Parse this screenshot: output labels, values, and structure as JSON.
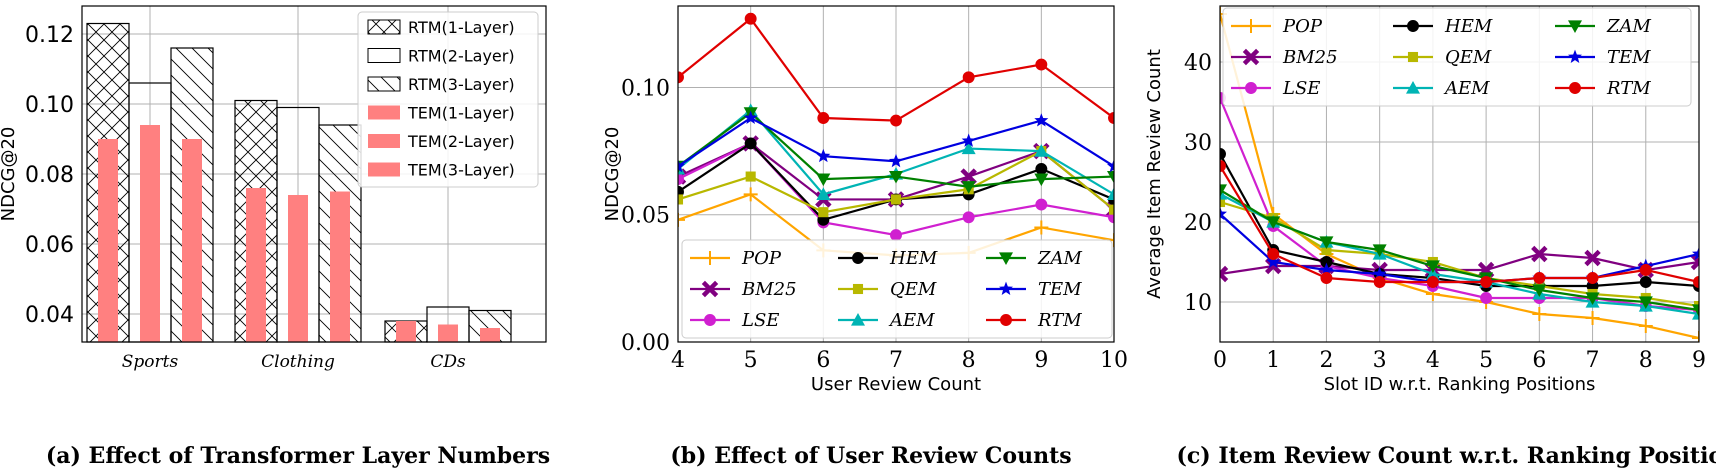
{
  "chart_data": [
    {
      "type": "bar",
      "title": "",
      "caption": "(a) Effect of Transformer Layer Numbers",
      "ylabel": "NDCG@20",
      "xlabel": "",
      "ylim": [
        0.032,
        0.128
      ],
      "yticks": [
        0.04,
        0.06,
        0.08,
        0.1,
        0.12
      ],
      "ytick_labels": [
        "0.04",
        "0.06",
        "0.08",
        "0.10",
        "0.12"
      ],
      "categories": [
        "Sports",
        "Clothing",
        "CDs"
      ],
      "series": [
        {
          "name": "RTM(1-Layer)",
          "kind": "outline",
          "hatch": "cross",
          "values": [
            0.123,
            0.101,
            0.038
          ]
        },
        {
          "name": "RTM(2-Layer)",
          "kind": "outline",
          "hatch": "none",
          "values": [
            0.106,
            0.099,
            0.042
          ]
        },
        {
          "name": "RTM(3-Layer)",
          "kind": "outline",
          "hatch": "back",
          "values": [
            0.116,
            0.094,
            0.041
          ]
        },
        {
          "name": "TEM(1-Layer)",
          "kind": "filled",
          "values": [
            0.09,
            0.076,
            0.038
          ]
        },
        {
          "name": "TEM(2-Layer)",
          "kind": "filled",
          "values": [
            0.094,
            0.074,
            0.037
          ]
        },
        {
          "name": "TEM(3-Layer)",
          "kind": "filled",
          "values": [
            0.09,
            0.075,
            0.036
          ]
        }
      ],
      "grid": true,
      "legend": "top-right",
      "colors": {
        "filled": "#ff8080",
        "outline": "#000000"
      }
    },
    {
      "type": "line",
      "title": "",
      "caption": "(b) Effect of User Review Counts",
      "xlabel": "User Review Count",
      "ylabel": "NDCG@20",
      "x": [
        4,
        5,
        6,
        7,
        8,
        9,
        10
      ],
      "xlim": [
        4,
        10
      ],
      "ylim": [
        0.0,
        0.132
      ],
      "yticks": [
        0.0,
        0.05,
        0.1
      ],
      "ytick_labels": [
        "0.00",
        "0.05",
        "0.10"
      ],
      "xtick_labels": [
        "4",
        "5",
        "6",
        "7",
        "8",
        "9",
        "10"
      ],
      "series": [
        {
          "name": "POP",
          "color": "#ffa500",
          "marker": "plus",
          "values": [
            0.048,
            0.058,
            0.036,
            0.034,
            0.035,
            0.045,
            0.04
          ]
        },
        {
          "name": "BM25",
          "color": "#800080",
          "marker": "x",
          "values": [
            0.065,
            0.078,
            0.056,
            0.056,
            0.065,
            0.075,
            0.052
          ]
        },
        {
          "name": "LSE",
          "color": "#d020d0",
          "marker": "circle",
          "values": [
            0.064,
            0.078,
            0.047,
            0.042,
            0.049,
            0.054,
            0.049
          ]
        },
        {
          "name": "HEM",
          "color": "#000000",
          "marker": "circle",
          "values": [
            0.059,
            0.078,
            0.048,
            0.056,
            0.058,
            0.068,
            0.056
          ]
        },
        {
          "name": "QEM",
          "color": "#b8b800",
          "marker": "square",
          "values": [
            0.056,
            0.065,
            0.051,
            0.056,
            0.06,
            0.075,
            0.052
          ]
        },
        {
          "name": "AEM",
          "color": "#00b4b4",
          "marker": "triangle-up",
          "values": [
            0.068,
            0.091,
            0.058,
            0.066,
            0.076,
            0.075,
            0.058
          ]
        },
        {
          "name": "ZAM",
          "color": "#008000",
          "marker": "triangle-down",
          "values": [
            0.069,
            0.09,
            0.064,
            0.065,
            0.061,
            0.064,
            0.065
          ]
        },
        {
          "name": "TEM",
          "color": "#0000e0",
          "marker": "star",
          "values": [
            0.069,
            0.088,
            0.073,
            0.071,
            0.079,
            0.087,
            0.069
          ]
        },
        {
          "name": "RTM",
          "color": "#e00000",
          "marker": "circle",
          "values": [
            0.104,
            0.127,
            0.088,
            0.087,
            0.104,
            0.109,
            0.088
          ]
        }
      ],
      "grid": true,
      "legend": "bottom"
    },
    {
      "type": "line",
      "title": "",
      "caption": "(c) Item Review Count w.r.t. Ranking Positions",
      "xlabel": "Slot ID w.r.t. Ranking Positions",
      "ylabel": "Average Item Review Count",
      "x": [
        0,
        1,
        2,
        3,
        4,
        5,
        6,
        7,
        8,
        9
      ],
      "xlim": [
        0,
        9
      ],
      "ylim": [
        5,
        47
      ],
      "yticks": [
        10,
        20,
        30,
        40
      ],
      "ytick_labels": [
        "10",
        "20",
        "30",
        "40"
      ],
      "xtick_labels": [
        "0",
        "1",
        "2",
        "3",
        "4",
        "5",
        "6",
        "7",
        "8",
        "9"
      ],
      "series": [
        {
          "name": "POP",
          "color": "#ffa500",
          "marker": "plus",
          "values": [
            46.0,
            21.0,
            16.0,
            13.0,
            11.0,
            10.0,
            8.5,
            8.0,
            7.0,
            5.5
          ]
        },
        {
          "name": "BM25",
          "color": "#800080",
          "marker": "x",
          "values": [
            13.5,
            14.5,
            14.5,
            14.0,
            14.0,
            14.0,
            16.0,
            15.5,
            14.0,
            15.0
          ]
        },
        {
          "name": "LSE",
          "color": "#d020d0",
          "marker": "circle",
          "values": [
            35.5,
            19.5,
            14.5,
            13.0,
            12.0,
            10.5,
            10.5,
            10.5,
            9.5,
            9.0
          ]
        },
        {
          "name": "HEM",
          "color": "#000000",
          "marker": "circle",
          "values": [
            28.5,
            16.5,
            15.0,
            13.5,
            13.0,
            12.0,
            12.0,
            12.0,
            12.5,
            12.0
          ]
        },
        {
          "name": "QEM",
          "color": "#b8b800",
          "marker": "square",
          "values": [
            22.5,
            20.5,
            16.5,
            16.0,
            15.0,
            13.0,
            12.0,
            11.0,
            10.5,
            9.5
          ]
        },
        {
          "name": "AEM",
          "color": "#00b4b4",
          "marker": "triangle-up",
          "values": [
            23.5,
            20.0,
            17.5,
            16.0,
            13.5,
            12.5,
            11.0,
            10.0,
            9.5,
            8.5
          ]
        },
        {
          "name": "ZAM",
          "color": "#008000",
          "marker": "triangle-down",
          "values": [
            24.0,
            20.0,
            17.5,
            16.5,
            14.5,
            13.0,
            11.5,
            10.5,
            10.0,
            9.0
          ]
        },
        {
          "name": "TEM",
          "color": "#0000e0",
          "marker": "star",
          "values": [
            21.0,
            15.0,
            14.0,
            13.5,
            12.5,
            12.5,
            13.0,
            13.0,
            14.5,
            16.0
          ]
        },
        {
          "name": "RTM",
          "color": "#e00000",
          "marker": "circle",
          "values": [
            27.0,
            16.0,
            13.0,
            12.5,
            12.5,
            12.5,
            13.0,
            13.0,
            14.0,
            12.5
          ]
        }
      ],
      "grid": true,
      "legend": "top"
    }
  ]
}
